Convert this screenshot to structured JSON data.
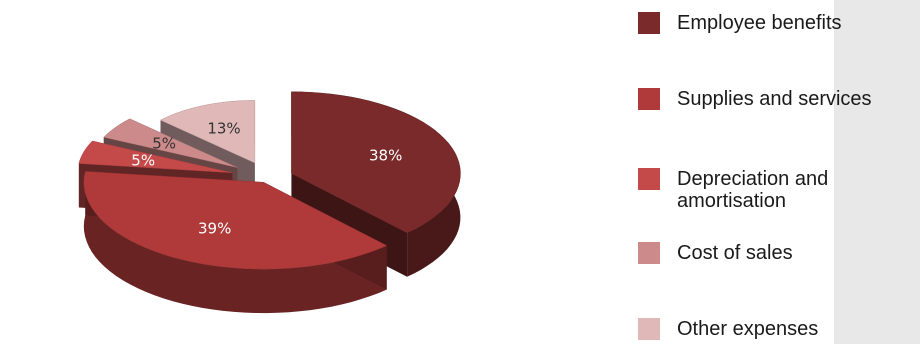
{
  "chart_data": {
    "type": "pie",
    "style": "3d-exploded",
    "categories": [
      "Employee benefits",
      "Supplies and services",
      "Depreciation and amortisation",
      "Cost of sales",
      "Other expenses"
    ],
    "values": [
      38,
      39,
      5,
      5,
      13
    ],
    "data_labels": [
      "38%",
      "39%",
      "5%",
      "5%",
      "13%"
    ],
    "colors": [
      "#7a2a2a",
      "#b03a3a",
      "#c44a4a",
      "#cc8a8a",
      "#e0b8b8"
    ],
    "legend": {
      "placement": "right",
      "entries": [
        "Employee benefits",
        "Supplies and services",
        "Depreciation and amortisation",
        "Cost of sales",
        "Other expenses"
      ]
    }
  }
}
